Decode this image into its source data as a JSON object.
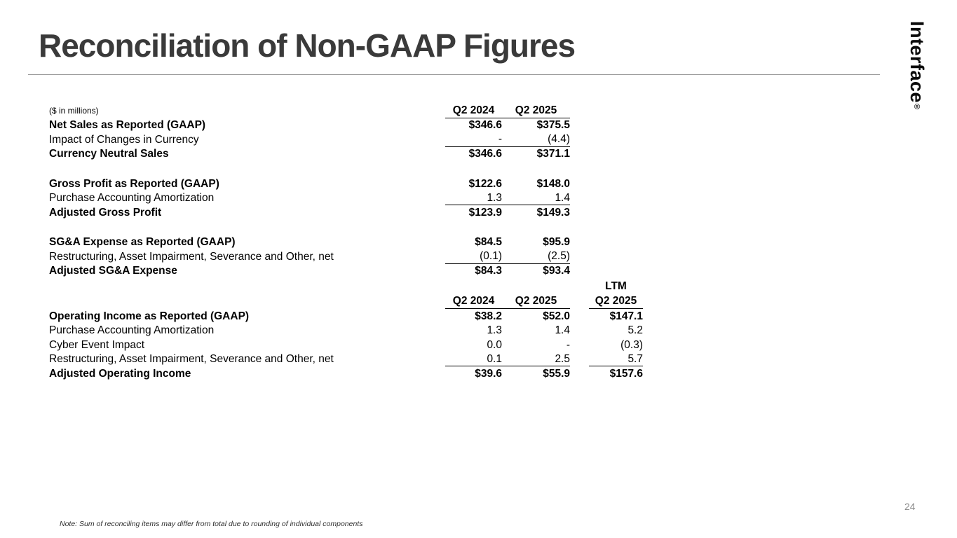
{
  "slide": {
    "title": "Reconciliation of Non-GAAP Figures",
    "logo_text": "Interface",
    "logo_registered": "®",
    "page_number": "24",
    "footnote": "Note: Sum of reconciling items may differ from total due to rounding of individual components"
  },
  "table": {
    "units_label": "($ in millions)",
    "header1": {
      "col1": "Q2 2024",
      "col2": "Q2 2025"
    },
    "header2": {
      "ltm_label": "LTM",
      "col1": "Q2 2024",
      "col2": "Q2 2025",
      "col3": "Q2 2025"
    },
    "sections": [
      {
        "name": "net_sales",
        "rows": [
          {
            "label": "Net Sales as Reported (GAAP)",
            "col1": "$346.6",
            "col2": "$375.5"
          },
          {
            "label": "Impact of Changes in Currency",
            "col1": "-",
            "col2": "(4.4)"
          },
          {
            "label": "Currency Neutral Sales",
            "col1": "$346.6",
            "col2": "$371.1"
          }
        ]
      },
      {
        "name": "gross_profit",
        "rows": [
          {
            "label": "Gross Profit as Reported (GAAP)",
            "col1": "$122.6",
            "col2": "$148.0"
          },
          {
            "label": "Purchase Accounting Amortization",
            "col1": "1.3",
            "col2": "1.4"
          },
          {
            "label": "Adjusted Gross Profit",
            "col1": "$123.9",
            "col2": "$149.3"
          }
        ]
      },
      {
        "name": "sga_expense",
        "rows": [
          {
            "label": "SG&A Expense as Reported (GAAP)",
            "col1": "$84.5",
            "col2": "$95.9"
          },
          {
            "label": "Restructuring, Asset Impairment, Severance and Other, net",
            "col1": "(0.1)",
            "col2": "(2.5)"
          },
          {
            "label": "Adjusted SG&A Expense",
            "col1": "$84.3",
            "col2": "$93.4"
          }
        ]
      },
      {
        "name": "operating_income",
        "rows": [
          {
            "label": "Operating Income as Reported (GAAP)",
            "col1": "$38.2",
            "col2": "$52.0",
            "col3": "$147.1"
          },
          {
            "label": "Purchase Accounting Amortization",
            "col1": "1.3",
            "col2": "1.4",
            "col3": "5.2"
          },
          {
            "label": "Cyber Event Impact",
            "col1": "0.0",
            "col2": "-",
            "col3": "(0.3)"
          },
          {
            "label": "Restructuring, Asset Impairment, Severance and Other, net",
            "col1": "0.1",
            "col2": "2.5",
            "col3": "5.7"
          },
          {
            "label": "Adjusted Operating Income",
            "col1": "$39.6",
            "col2": "$55.9",
            "col3": "$157.6"
          }
        ]
      }
    ]
  }
}
